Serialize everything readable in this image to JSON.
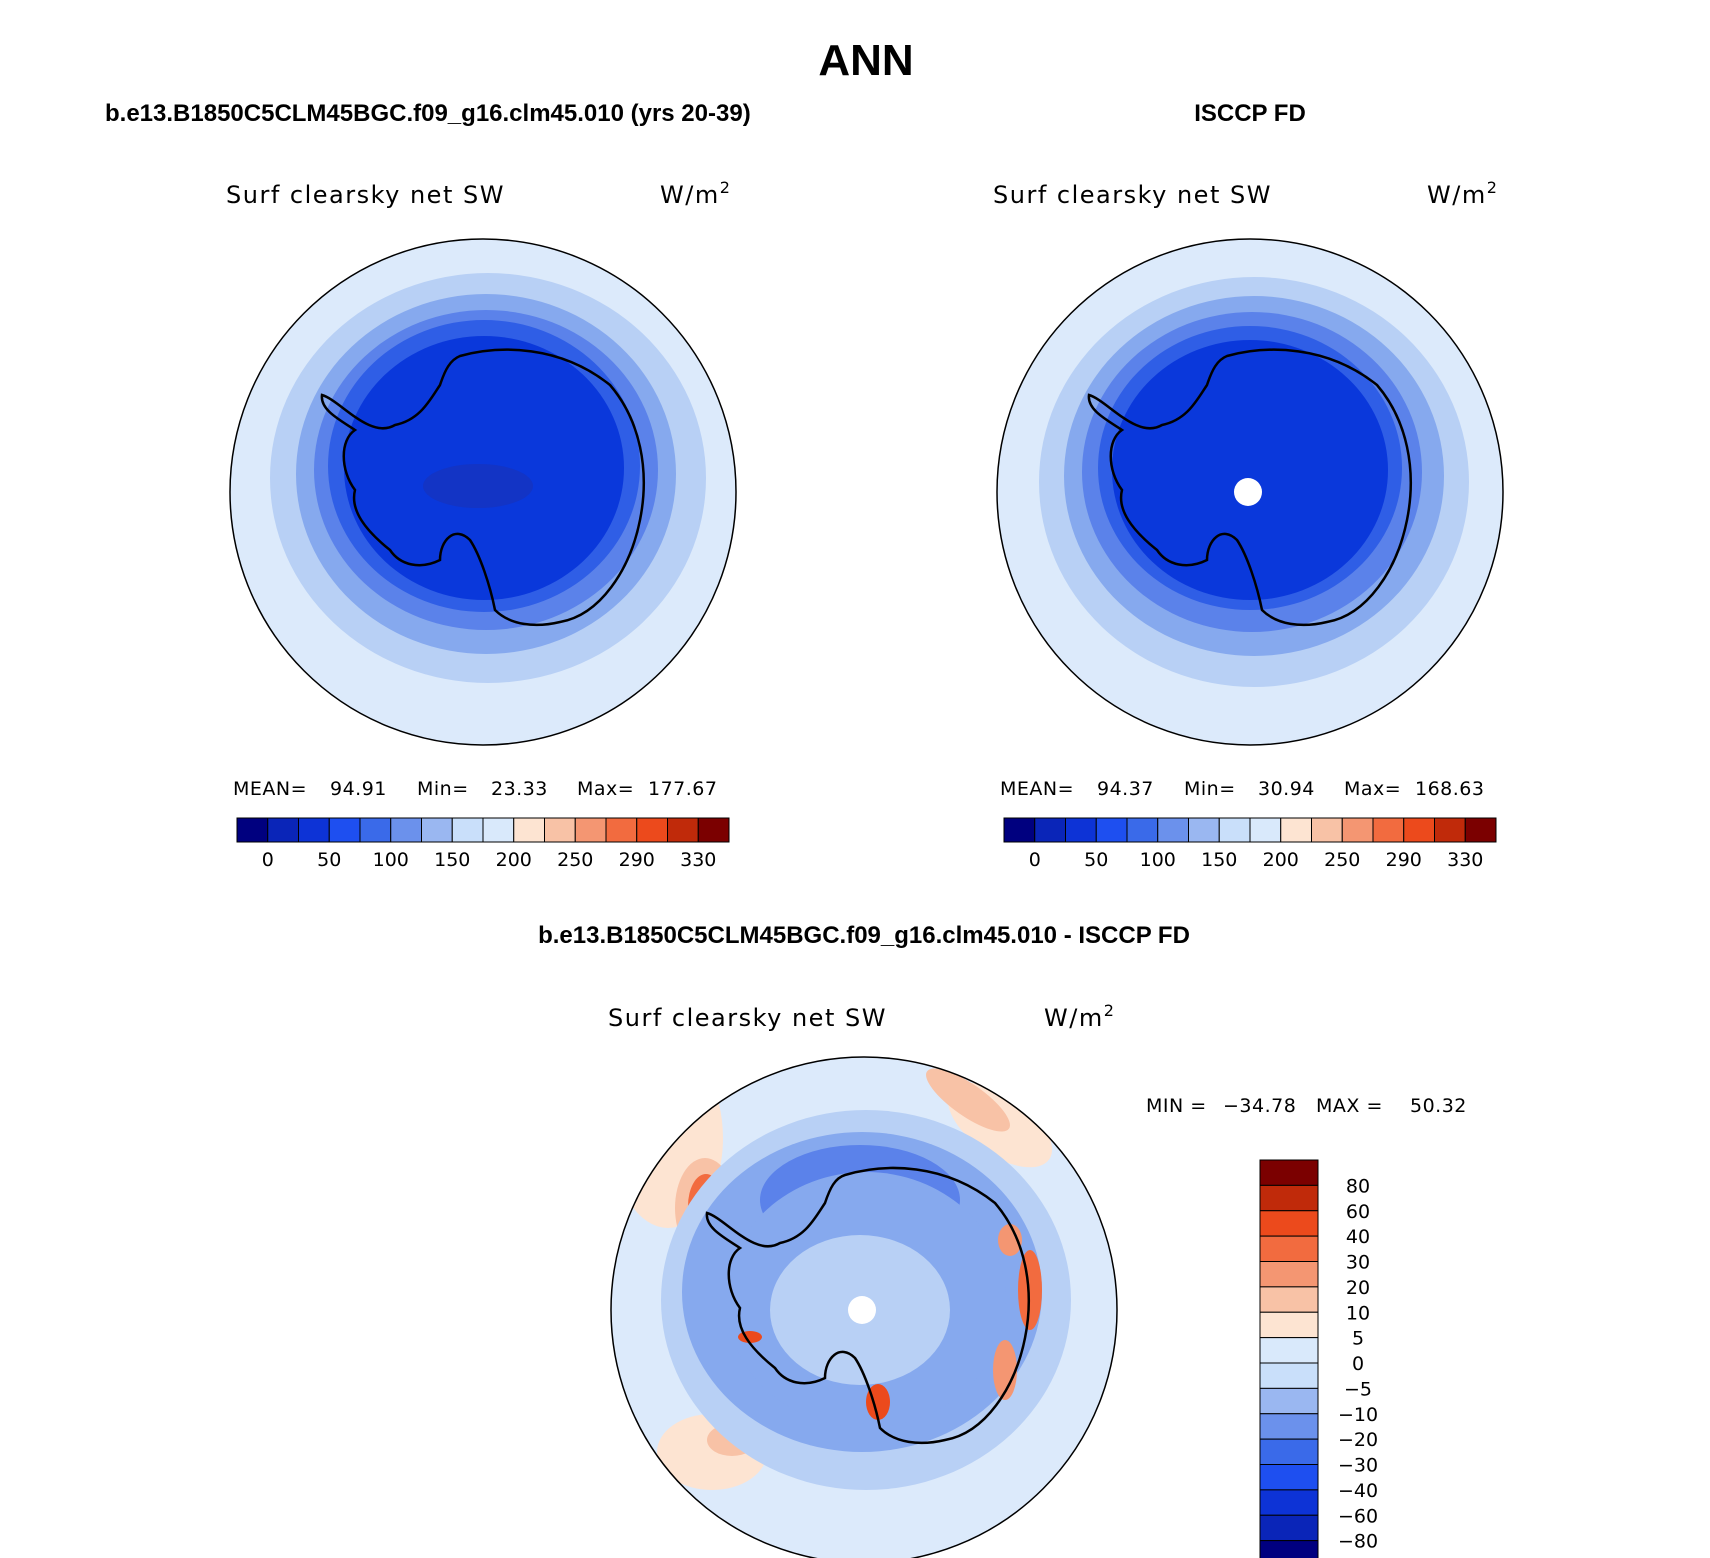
{
  "figure": {
    "title": "ANN"
  },
  "colors": {
    "coastline": "#000000",
    "missing": "#ffffff"
  },
  "chart_data": [
    {
      "type": "map",
      "projection": "south polar stereographic",
      "title": "b.e13.B1850C5CLM45BGC.f09_g16.clm45.010 (yrs 20-39)",
      "variable": "Surf clearsky net SW",
      "units": "W/m",
      "units_exponent": "2",
      "stats": {
        "mean_label": "MEAN=",
        "mean": "94.91",
        "min_label": "Min=",
        "min": "23.33",
        "max_label": "Max=",
        "max": "177.67"
      },
      "levels": [
        "0",
        "25",
        "50",
        "75",
        "100",
        "125",
        "150",
        "175",
        "200",
        "225",
        "250",
        "270",
        "290",
        "310",
        "330"
      ],
      "level_labels": [
        "0",
        "50",
        "100",
        "150",
        "200",
        "250",
        "290",
        "330"
      ],
      "colors": [
        "#00007f",
        "#0a25b8",
        "#0d33d6",
        "#1e4ff0",
        "#3a6ae9",
        "#6b91ec",
        "#9ab7f1",
        "#c9dffa",
        "#d9e9fb",
        "#fde4d2",
        "#f8c2a6",
        "#f49672",
        "#f26b3f",
        "#ec4a1c",
        "#c02a0a",
        "#7b0000"
      ],
      "bands": [
        "#dceafb",
        "#b8d0f5",
        "#86a9ee",
        "#5b82ea",
        "#2f5ee6",
        "#0a38db"
      ],
      "missing_pole": false
    },
    {
      "type": "map",
      "projection": "south polar stereographic",
      "title": "ISCCP FD",
      "variable": "Surf clearsky net SW",
      "units": "W/m",
      "units_exponent": "2",
      "stats": {
        "mean_label": "MEAN=",
        "mean": "94.37",
        "min_label": "Min=",
        "min": "30.94",
        "max_label": "Max=",
        "max": "168.63"
      },
      "levels": [
        "0",
        "25",
        "50",
        "75",
        "100",
        "125",
        "150",
        "175",
        "200",
        "225",
        "250",
        "270",
        "290",
        "310",
        "330"
      ],
      "level_labels": [
        "0",
        "50",
        "100",
        "150",
        "200",
        "250",
        "290",
        "330"
      ],
      "colors": [
        "#00007f",
        "#0a25b8",
        "#0d33d6",
        "#1e4ff0",
        "#3a6ae9",
        "#6b91ec",
        "#9ab7f1",
        "#c9dffa",
        "#d9e9fb",
        "#fde4d2",
        "#f8c2a6",
        "#f49672",
        "#f26b3f",
        "#ec4a1c",
        "#c02a0a",
        "#7b0000"
      ],
      "bands": [
        "#dceafb",
        "#b8d0f5",
        "#86a9ee",
        "#5b82ea",
        "#2f5ee6",
        "#0a38db"
      ],
      "missing_pole": true
    },
    {
      "type": "map",
      "projection": "south polar stereographic",
      "title": "b.e13.B1850C5CLM45BGC.f09_g16.clm45.010 - ISCCP FD",
      "variable": "Surf clearsky net SW",
      "units": "W/m",
      "units_exponent": "2",
      "stats": {
        "min_label": "MIN =",
        "min": "−34.78",
        "max_label": "MAX =",
        "max": "50.32"
      },
      "levels": [
        "80",
        "60",
        "40",
        "30",
        "20",
        "10",
        "5",
        "0",
        "−5",
        "−10",
        "−20",
        "−30",
        "−40",
        "−60",
        "−80"
      ],
      "colors": [
        "#7b0000",
        "#c02a0a",
        "#ec4a1c",
        "#f26b3f",
        "#f49672",
        "#f8c2a6",
        "#fde4d2",
        "#d9e9fb",
        "#c9dffa",
        "#9ab7f1",
        "#6b91ec",
        "#3a6ae9",
        "#1e4ff0",
        "#0d33d6",
        "#0a25b8",
        "#00007f"
      ],
      "missing_pole": true
    }
  ]
}
